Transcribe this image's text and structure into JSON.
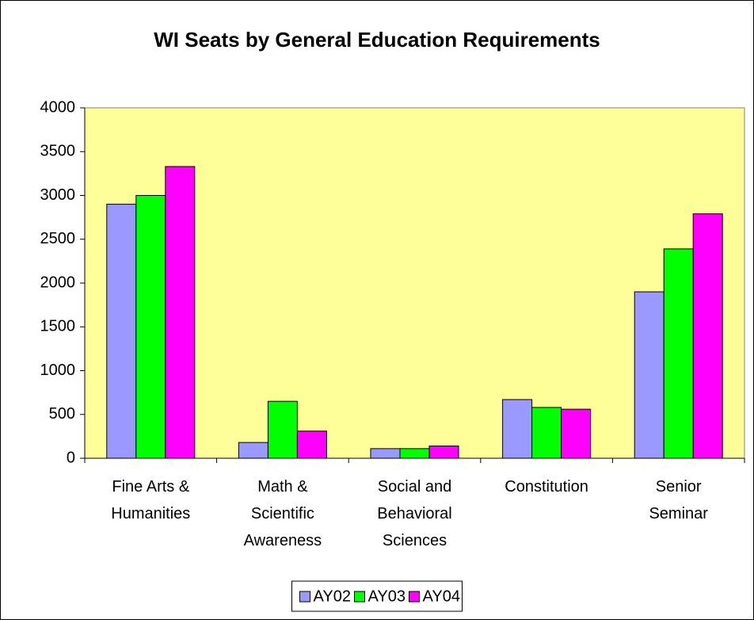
{
  "chart_data": {
    "type": "bar",
    "title": "WI Seats by General Education Requirements",
    "categories": [
      "Fine Arts &\nHumanities",
      "Math &\nScientific\nAwareness",
      "Social and\nBehavioral\nSciences",
      "Constitution",
      "Senior\nSeminar"
    ],
    "series": [
      {
        "name": "AY02",
        "color": "#9999ff",
        "values": [
          2900,
          180,
          110,
          670,
          1900
        ]
      },
      {
        "name": "AY03",
        "color": "#00ff00",
        "values": [
          3000,
          650,
          110,
          580,
          2390
        ]
      },
      {
        "name": "AY04",
        "color": "#ff00ff",
        "values": [
          3330,
          310,
          140,
          560,
          2790
        ]
      }
    ],
    "ylim": [
      0,
      4000
    ],
    "yticks": [
      0,
      500,
      1000,
      1500,
      2000,
      2500,
      3000,
      3500,
      4000
    ],
    "legend": "bottom",
    "plot_background": "#ffff99"
  }
}
